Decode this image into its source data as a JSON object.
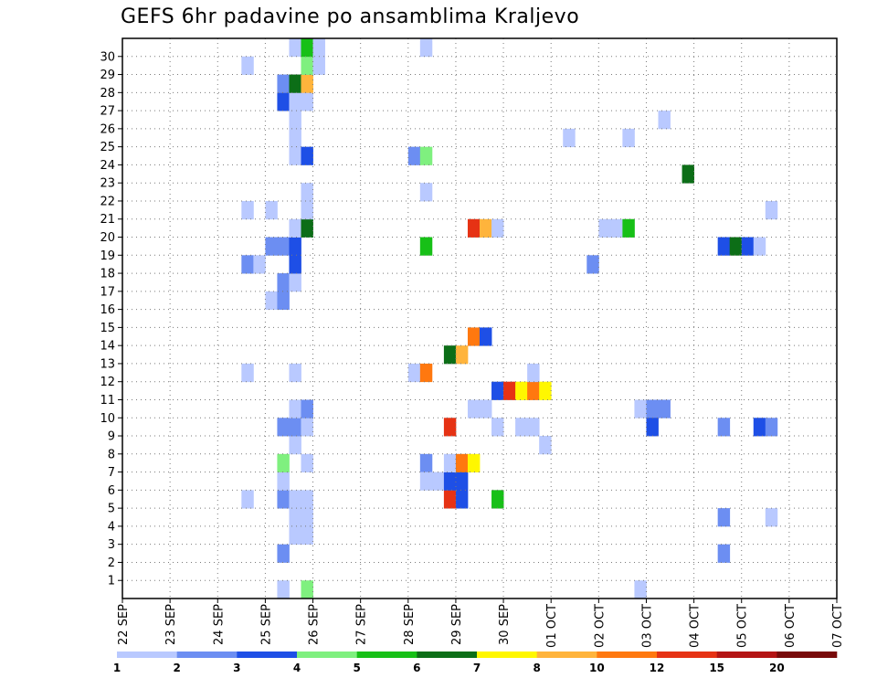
{
  "title": "GEFS 6hr padavine po ansamblima Kraljevo",
  "chart_data": {
    "type": "heatmap",
    "title": "GEFS 6hr padavine po ansamblima Kraljevo",
    "x_tick_labels": [
      "22 SEP",
      "23 SEP",
      "24 SEP",
      "25 SEP",
      "26 SEP",
      "27 SEP",
      "28 SEP",
      "29 SEP",
      "30 SEP",
      "01 OCT",
      "02 OCT",
      "03 OCT",
      "04 OCT",
      "05 OCT",
      "06 OCT",
      "07 OCT"
    ],
    "x_range_steps": [
      0,
      60
    ],
    "y_tick_labels": [
      "1",
      "2",
      "3",
      "4",
      "5",
      "6",
      "7",
      "8",
      "9",
      "10",
      "11",
      "12",
      "13",
      "14",
      "15",
      "16",
      "17",
      "18",
      "19",
      "20",
      "21",
      "22",
      "23",
      "24",
      "25",
      "26",
      "27",
      "28",
      "29",
      "30"
    ],
    "y_range": [
      0,
      30
    ],
    "grid": true,
    "legend": {
      "placement": "bottom",
      "labels": [
        "1",
        "2",
        "3",
        "4",
        "5",
        "6",
        "7",
        "8",
        "10",
        "12",
        "15",
        "20"
      ],
      "colors": [
        "#b9c9ff",
        "#6c8ef2",
        "#1e4fe6",
        "#7ff07f",
        "#17c017",
        "#0c6e17",
        "#fff700",
        "#ffb43c",
        "#ff780f",
        "#e63214",
        "#b41414",
        "#780a0a"
      ]
    },
    "color_levels": [
      "#b9c9ff",
      "#6c8ef2",
      "#1e4fe6",
      "#7ff07f",
      "#17c017",
      "#0c6e17",
      "#fff700",
      "#ffb43c",
      "#ff780f",
      "#e63214",
      "#b41414",
      "#780a0a"
    ],
    "cells": [
      [
        13,
        0,
        1
      ],
      [
        15,
        0,
        4
      ],
      [
        13,
        2,
        2
      ],
      [
        14,
        3,
        1
      ],
      [
        15,
        3,
        1
      ],
      [
        14,
        4,
        1
      ],
      [
        15,
        4,
        1
      ],
      [
        10,
        5,
        1
      ],
      [
        13,
        5,
        2
      ],
      [
        14,
        5,
        1
      ],
      [
        15,
        5,
        1
      ],
      [
        13,
        6,
        1
      ],
      [
        13,
        7,
        4
      ],
      [
        15,
        7,
        1
      ],
      [
        14,
        8,
        1
      ],
      [
        13,
        9,
        2
      ],
      [
        14,
        9,
        2
      ],
      [
        15,
        9,
        1
      ],
      [
        14,
        10,
        1
      ],
      [
        15,
        10,
        2
      ],
      [
        10,
        12,
        1
      ],
      [
        14,
        12,
        1
      ],
      [
        12,
        16,
        1
      ],
      [
        13,
        16,
        2
      ],
      [
        13,
        17,
        2
      ],
      [
        14,
        17,
        1
      ],
      [
        10,
        18,
        2
      ],
      [
        11,
        18,
        1
      ],
      [
        14,
        18,
        3
      ],
      [
        12,
        19,
        2
      ],
      [
        13,
        19,
        2
      ],
      [
        14,
        19,
        3
      ],
      [
        14,
        20,
        1
      ],
      [
        15,
        20,
        6
      ],
      [
        10,
        21,
        1
      ],
      [
        12,
        21,
        1
      ],
      [
        15,
        21,
        1
      ],
      [
        15,
        22,
        1
      ],
      [
        14,
        24,
        1
      ],
      [
        15,
        24,
        3
      ],
      [
        14,
        25,
        1
      ],
      [
        14,
        26,
        1
      ],
      [
        13,
        27,
        3
      ],
      [
        14,
        27,
        1
      ],
      [
        15,
        27,
        1
      ],
      [
        13,
        28,
        2
      ],
      [
        14,
        28,
        6
      ],
      [
        15,
        28,
        8
      ],
      [
        10,
        29,
        1
      ],
      [
        15,
        29,
        4
      ],
      [
        16,
        29,
        1
      ],
      [
        14,
        30,
        1
      ],
      [
        15,
        30,
        5
      ],
      [
        16,
        30,
        1
      ],
      [
        27,
        5,
        10
      ],
      [
        28,
        5,
        3
      ],
      [
        31,
        5,
        5
      ],
      [
        26,
        6,
        1
      ],
      [
        27,
        6,
        3
      ],
      [
        28,
        6,
        3
      ],
      [
        27,
        7,
        1
      ],
      [
        28,
        7,
        9
      ],
      [
        29,
        7,
        7
      ],
      [
        25,
        7,
        2
      ],
      [
        25,
        6,
        1
      ],
      [
        27,
        9,
        10
      ],
      [
        31,
        9,
        1
      ],
      [
        33,
        9,
        1
      ],
      [
        34,
        9,
        1
      ],
      [
        35,
        8,
        1
      ],
      [
        29,
        10,
        1
      ],
      [
        30,
        10,
        1
      ],
      [
        31,
        11,
        3
      ],
      [
        32,
        11,
        10
      ],
      [
        33,
        11,
        7
      ],
      [
        34,
        11,
        9
      ],
      [
        35,
        11,
        7
      ],
      [
        24,
        12,
        1
      ],
      [
        25,
        12,
        9
      ],
      [
        34,
        12,
        1
      ],
      [
        27,
        13,
        6
      ],
      [
        28,
        13,
        8
      ],
      [
        29,
        14,
        9
      ],
      [
        30,
        14,
        3
      ],
      [
        25,
        19,
        5
      ],
      [
        29,
        20,
        10
      ],
      [
        30,
        20,
        8
      ],
      [
        31,
        20,
        1
      ],
      [
        25,
        22,
        1
      ],
      [
        24,
        24,
        2
      ],
      [
        25,
        24,
        4
      ],
      [
        25,
        30,
        1
      ],
      [
        37,
        25,
        1
      ],
      [
        39,
        18,
        2
      ],
      [
        40,
        20,
        1
      ],
      [
        41,
        20,
        1
      ],
      [
        42,
        20,
        5
      ],
      [
        42,
        25,
        1
      ],
      [
        43,
        10,
        1
      ],
      [
        44,
        10,
        2
      ],
      [
        45,
        10,
        2
      ],
      [
        43,
        0,
        1
      ],
      [
        44,
        9,
        3
      ],
      [
        45,
        26,
        1
      ],
      [
        47,
        23,
        6
      ],
      [
        50,
        2,
        2
      ],
      [
        50,
        4,
        2
      ],
      [
        50,
        9,
        2
      ],
      [
        50,
        19,
        3
      ],
      [
        51,
        19,
        6
      ],
      [
        52,
        19,
        3
      ],
      [
        53,
        19,
        1
      ],
      [
        53,
        9,
        3
      ],
      [
        54,
        9,
        2
      ],
      [
        54,
        21,
        1
      ],
      [
        54,
        4,
        1
      ]
    ]
  }
}
